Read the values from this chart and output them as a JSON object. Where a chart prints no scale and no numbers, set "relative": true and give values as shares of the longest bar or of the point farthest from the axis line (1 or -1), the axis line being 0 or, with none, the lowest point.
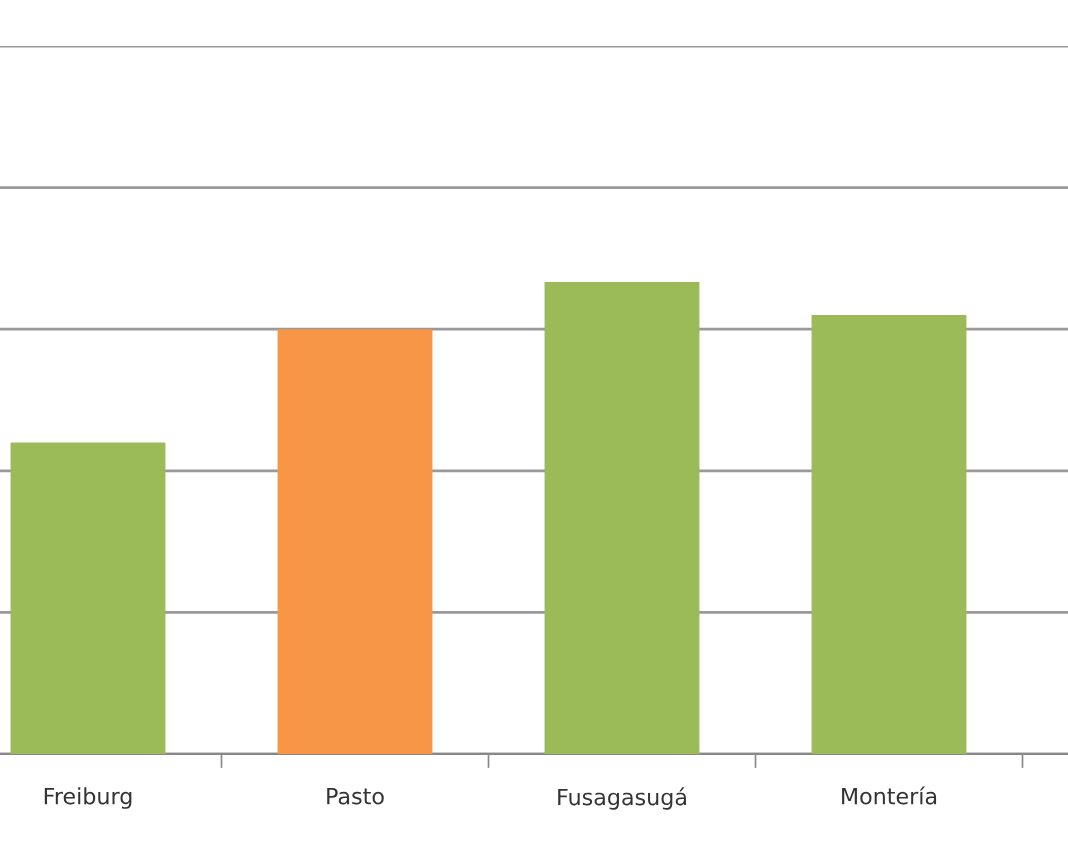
{
  "chart_data": {
    "type": "bar",
    "relative": true,
    "categories": [
      "Freiburg",
      "Pasto",
      "Fusagasugá",
      "Montería"
    ],
    "values": [
      0.66,
      0.9,
      1,
      0.93
    ],
    "colors": [
      "#9bbb59",
      "#f79646",
      "#9bbb59",
      "#9bbb59"
    ],
    "grid": "y"
  }
}
